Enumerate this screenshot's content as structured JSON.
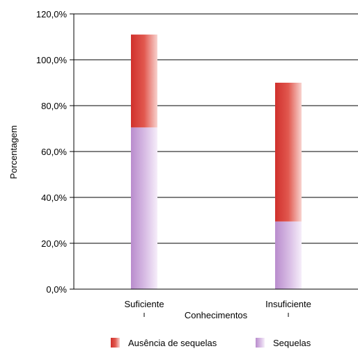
{
  "chart_data": {
    "type": "bar",
    "stacked": true,
    "categories": [
      "Suficiente",
      "Insuficiente"
    ],
    "series": [
      {
        "name": "Sequelas",
        "values": [
          70.5,
          29.5
        ],
        "color": "#c9a6d8"
      },
      {
        "name": "Ausência de sequelas",
        "values": [
          40.5,
          60.5
        ],
        "color": "#d63b34"
      }
    ],
    "xlabel": "Conhecimentos",
    "ylabel": "Porcentagem",
    "ylim": [
      0,
      120
    ],
    "yticks": [
      "0,0%",
      "20,0%",
      "40,0%",
      "60,0%",
      "80,0%",
      "100,0%",
      "120,0%"
    ],
    "ytick_values": [
      0,
      20,
      40,
      60,
      80,
      100,
      120
    ],
    "grid": true,
    "legend_position": "bottom",
    "legend_order": [
      "Ausência de sequelas",
      "Sequelas"
    ]
  }
}
